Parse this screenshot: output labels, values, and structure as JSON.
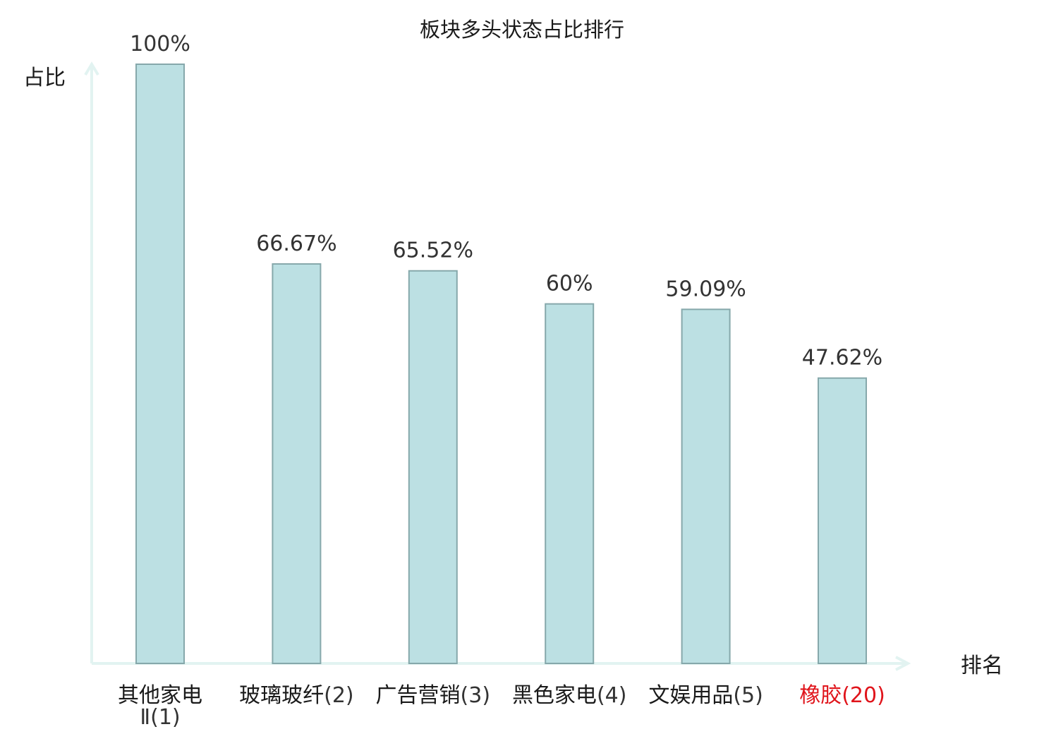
{
  "chart_data": {
    "type": "bar",
    "title": "板块多头状态占比排行",
    "ylabel": "占比",
    "xlabel": "排名",
    "ylim": [
      0,
      100
    ],
    "grid": false,
    "categories": [
      {
        "name": "其他家电",
        "name_line2": "Ⅱ",
        "rank": "(1)",
        "highlight": false
      },
      {
        "name": "玻璃玻纤",
        "name_line2": "",
        "rank": "(2)",
        "highlight": false
      },
      {
        "name": "广告营销",
        "name_line2": "",
        "rank": "(3)",
        "highlight": false
      },
      {
        "name": "黑色家电",
        "name_line2": "",
        "rank": "(4)",
        "highlight": false
      },
      {
        "name": "文娱用品",
        "name_line2": "",
        "rank": "(5)",
        "highlight": false
      },
      {
        "name": "橡胶",
        "name_line2": "",
        "rank": "(20)",
        "highlight": true
      }
    ],
    "values": [
      100,
      66.67,
      65.52,
      60,
      59.09,
      47.62
    ],
    "value_labels": [
      "100%",
      "66.67%",
      "65.52%",
      "60%",
      "59.09%",
      "47.62%"
    ],
    "colors": {
      "bar_fill": "#bce0e3",
      "bar_stroke": "#86a8ab",
      "axis": "#e2f3f1",
      "highlight": "#e0141b"
    }
  }
}
